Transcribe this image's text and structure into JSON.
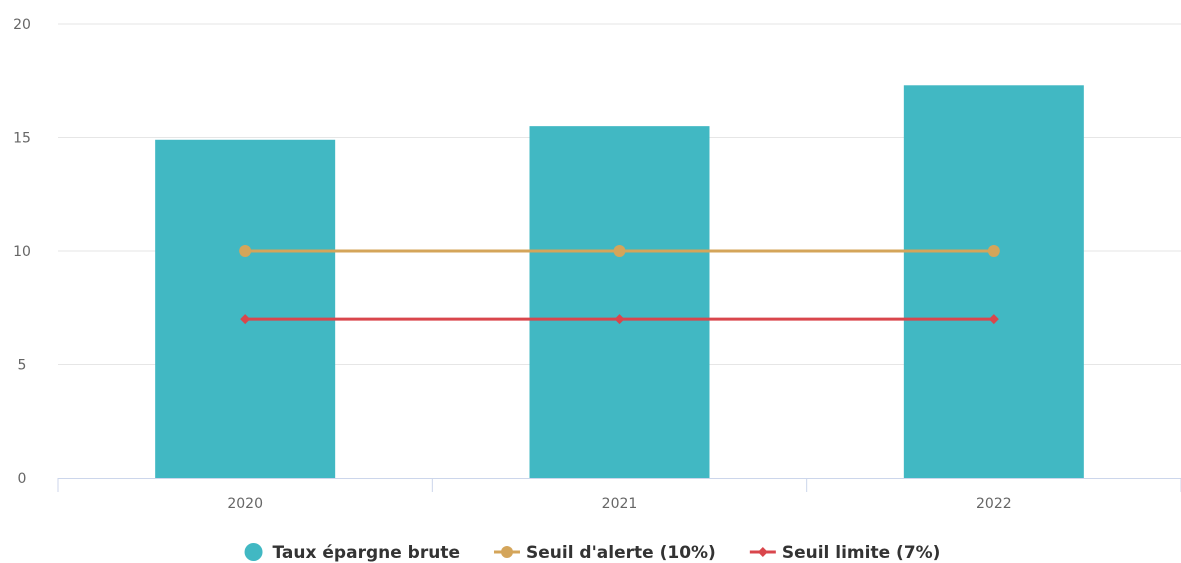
{
  "chart_data": {
    "type": "bar",
    "title": "",
    "xlabel": "",
    "ylabel": "",
    "categories": [
      "2020",
      "2021",
      "2022"
    ],
    "ylim": [
      0,
      20
    ],
    "yticks": [
      "0",
      "5",
      "10",
      "15",
      "20"
    ],
    "grid": true,
    "legend_position": "bottom-center",
    "series": [
      {
        "name": "Taux épargne brute",
        "kind": "bar",
        "color": "#41b8c3",
        "values": [
          14.9,
          15.5,
          17.3
        ]
      },
      {
        "name": "Seuil d'alerte (10%)",
        "kind": "line",
        "marker": "circle",
        "color": "#d4a55a",
        "values": [
          10,
          10,
          10
        ]
      },
      {
        "name": "Seuil limite (7%)",
        "kind": "line",
        "marker": "diamond",
        "color": "#d9464c",
        "values": [
          7,
          7,
          7
        ]
      }
    ]
  }
}
